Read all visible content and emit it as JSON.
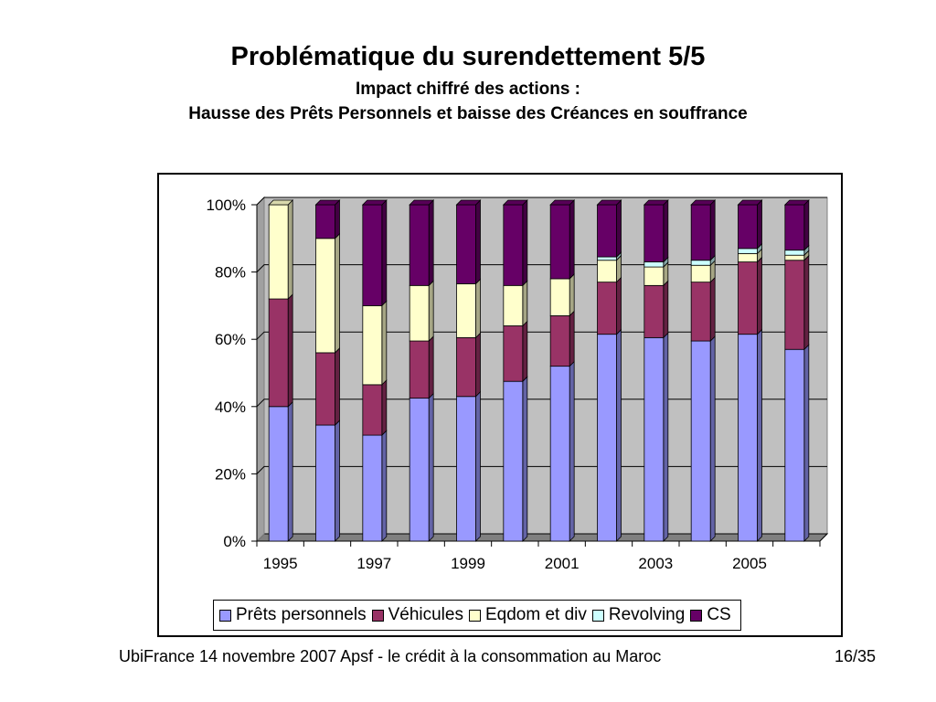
{
  "slide": {
    "title": "Problématique du surendettement 5/5",
    "subtitle": "Impact chiffré des actions :",
    "subtitle2": "Hausse des Prêts Personnels et baisse des Créances en souffrance"
  },
  "footer": {
    "left": "UbiFrance 14 novembre 2007  Apsf - le crédit à la consommation au Maroc",
    "page": "16/35"
  },
  "chart_data": {
    "type": "bar",
    "stacked": "percent",
    "categories": [
      "1995",
      "1996",
      "1997",
      "1998",
      "1999",
      "2000",
      "2001",
      "2002",
      "2003",
      "2004",
      "2005",
      "2006"
    ],
    "x_tick_labels": [
      "1995",
      "",
      "1997",
      "",
      "1999",
      "",
      "2001",
      "",
      "2003",
      "",
      "2005",
      ""
    ],
    "y_tick_labels": [
      "0%",
      "20%",
      "40%",
      "60%",
      "80%",
      "100%"
    ],
    "ylim": [
      0,
      100
    ],
    "grid": true,
    "legend_position": "bottom",
    "series": [
      {
        "name": "Prêts personnels",
        "color": "#9999ff",
        "values": [
          40,
          34.5,
          31.5,
          42.5,
          43,
          47.5,
          52,
          61.5,
          60.5,
          59.5,
          61.5,
          57
        ]
      },
      {
        "name": "Véhicules",
        "color": "#993366",
        "values": [
          32,
          21.5,
          15,
          17,
          17.5,
          16.5,
          15,
          15.5,
          15.5,
          17.5,
          21.5,
          26.5
        ]
      },
      {
        "name": "Eqdom et div",
        "color": "#ffffcc",
        "values": [
          28,
          34,
          23.5,
          16.5,
          16,
          12,
          11,
          6.5,
          5.5,
          5,
          2.5,
          1.5
        ]
      },
      {
        "name": "Revolving",
        "color": "#ccffff",
        "values": [
          0,
          0,
          0,
          0,
          0,
          0,
          0,
          1,
          1.5,
          1.5,
          1.5,
          1.5
        ]
      },
      {
        "name": "CS",
        "color": "#660066",
        "values": [
          0,
          10,
          30,
          24,
          23.5,
          24,
          22,
          15.5,
          17,
          16.5,
          13,
          13.5
        ]
      }
    ]
  }
}
